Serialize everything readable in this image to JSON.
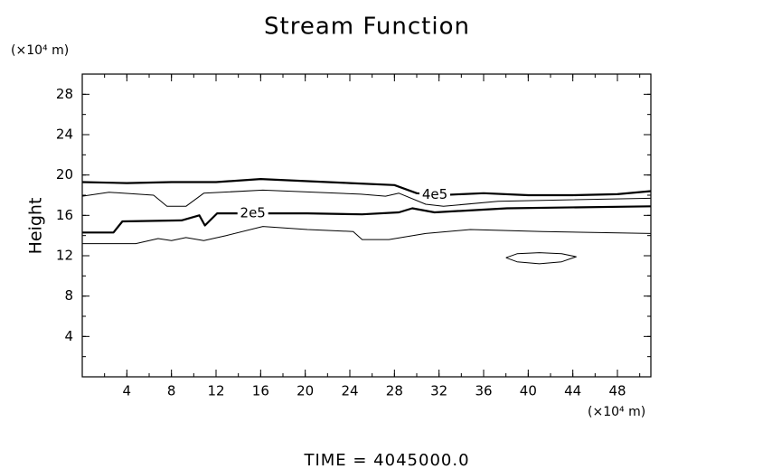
{
  "chart_data": {
    "type": "contour",
    "title": "Stream Function",
    "y_label": "Height",
    "y_unit": "(×10⁴ m)",
    "x_unit": "(×10⁴ m)",
    "footer": "TIME  =  4045000.0",
    "xlim": [
      0,
      51
    ],
    "ylim": [
      0,
      30
    ],
    "xticks": [
      4,
      8,
      12,
      16,
      20,
      24,
      28,
      32,
      36,
      40,
      44,
      48
    ],
    "yticks": [
      4,
      8,
      12,
      16,
      20,
      24,
      28
    ],
    "grid": false,
    "color": "#000000",
    "contours": [
      {
        "label": "4e5",
        "thick": true,
        "x": [
          0,
          4,
          8,
          12,
          16,
          20,
          24,
          28,
          30,
          32,
          36,
          40,
          44,
          48,
          51
        ],
        "y": [
          19.3,
          19.2,
          19.3,
          19.3,
          19.6,
          19.4,
          19.2,
          19.0,
          18.2,
          18.0,
          18.2,
          18.0,
          18.0,
          18.1,
          18.4
        ]
      },
      {
        "thick": false,
        "x": [
          0,
          2.4,
          6.4,
          7.6,
          9.3,
          10.9,
          16.2,
          25,
          27.2,
          28.4,
          30.8,
          32.4,
          37.3,
          51
        ],
        "y": [
          17.9,
          18.3,
          18.0,
          16.9,
          16.9,
          18.2,
          18.5,
          18.1,
          17.9,
          18.2,
          17.1,
          16.9,
          17.4,
          17.7
        ]
      },
      {
        "label": "2e5",
        "thick": true,
        "x": [
          0,
          2.8,
          3.6,
          8.9,
          10.5,
          11.0,
          12.1,
          16.6,
          20.2,
          25.1,
          28.4,
          29.6,
          31.6,
          38.1,
          51
        ],
        "y": [
          14.3,
          14.3,
          15.4,
          15.5,
          16.0,
          15.0,
          16.2,
          16.2,
          16.2,
          16.1,
          16.3,
          16.7,
          16.3,
          16.7,
          16.9
        ]
      },
      {
        "thick": false,
        "x": [
          0,
          4.8,
          6.8,
          8.0,
          9.3,
          10.9,
          12.9,
          16.2,
          20.2,
          24.3,
          25.1,
          27.5,
          30.8,
          34.8,
          41.3,
          51
        ],
        "y": [
          13.2,
          13.2,
          13.7,
          13.5,
          13.8,
          13.5,
          14.0,
          14.9,
          14.6,
          14.4,
          13.6,
          13.6,
          14.2,
          14.6,
          14.4,
          14.2
        ]
      },
      {
        "thick": false,
        "x": [
          38,
          39,
          41,
          43,
          44.3,
          43,
          41,
          39,
          38
        ],
        "y": [
          11.8,
          12.2,
          12.3,
          12.2,
          11.9,
          11.4,
          11.2,
          11.4,
          11.8
        ]
      }
    ]
  }
}
